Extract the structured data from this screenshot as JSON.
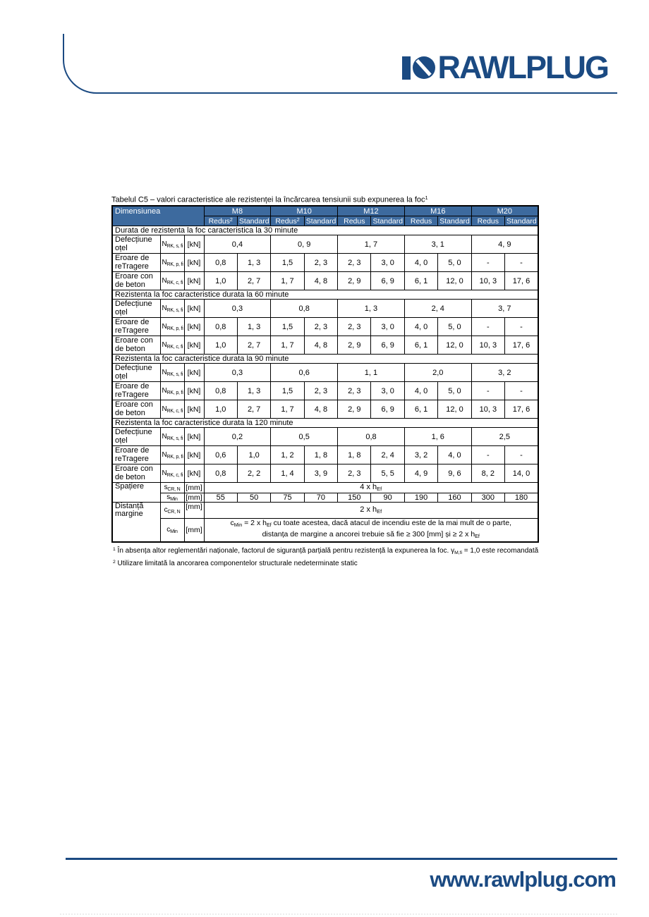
{
  "brand": {
    "logo_text": "RAWLPLUG",
    "website": "www.rawlplug.com",
    "color": "#1b4a82",
    "table_header_color": "#3d6a9e"
  },
  "table": {
    "title": "Tabelul C5 – valori caracteristice ale rezistenței la încărcarea tensiunii sub expunerea la foc^1^",
    "header": {
      "dimension": "Dimensiunea",
      "groups": [
        "M8",
        "M10",
        "M12",
        "M16",
        "M20"
      ],
      "subcols": [
        "Redus^2^",
        "Standard",
        "Redus^2^",
        "Standard",
        "Redus",
        "Standard",
        "Redus",
        "Standard",
        "Redus",
        "Standard"
      ]
    },
    "sections": [
      {
        "title": "Durata de rezistenta la foc caracteristica la 30 minute",
        "rows": [
          {
            "label": "Defecțiune oțel",
            "symbol": "N~RK, s, fi~",
            "unit": "[kN]",
            "span": 2,
            "values": [
              "0,4",
              "0, 9",
              "1, 7",
              "3, 1",
              "4, 9"
            ]
          },
          {
            "label": "Eroare de reTragere",
            "symbol": "N~RK, p, fi~",
            "unit": "[kN]",
            "span": 1,
            "values": [
              "0,8",
              "1, 3",
              "1,5",
              "2, 3",
              "2, 3",
              "3, 0",
              "4, 0",
              "5, 0",
              "-",
              "-"
            ]
          },
          {
            "label": "Eroare con de beton",
            "symbol": "N~RK, c, fi~",
            "unit": "[kN]",
            "span": 1,
            "values": [
              "1,0",
              "2, 7",
              "1, 7",
              "4, 8",
              "2, 9",
              "6, 9",
              "6, 1",
              "12, 0",
              "10, 3",
              "17, 6"
            ]
          }
        ]
      },
      {
        "title": "Rezistenta la foc caracteristice durata la 60 minute",
        "rows": [
          {
            "label": "Defecțiune oțel",
            "symbol": "N~RK, s, fi~",
            "unit": "[kN]",
            "span": 2,
            "values": [
              "0,3",
              "0,8",
              "1, 3",
              "2, 4",
              "3, 7"
            ]
          },
          {
            "label": "Eroare de reTragere",
            "symbol": "N~RK, p, fi~",
            "unit": "[kN]",
            "span": 1,
            "values": [
              "0,8",
              "1, 3",
              "1,5",
              "2, 3",
              "2, 3",
              "3, 0",
              "4, 0",
              "5, 0",
              "-",
              "-"
            ]
          },
          {
            "label": "Eroare con de beton",
            "symbol": "N~RK, c, fi~",
            "unit": "[kN]",
            "span": 1,
            "values": [
              "1,0",
              "2, 7",
              "1, 7",
              "4, 8",
              "2, 9",
              "6, 9",
              "6, 1",
              "12, 0",
              "10, 3",
              "17, 6"
            ]
          }
        ]
      },
      {
        "title": "Rezistenta la foc caracteristice durata la 90 minute",
        "rows": [
          {
            "label": "Defecțiune oțel",
            "symbol": "N~RK, s, fi~",
            "unit": "[kN]",
            "span": 2,
            "values": [
              "0,3",
              "0,6",
              "1, 1",
              "2,0",
              "3, 2"
            ]
          },
          {
            "label": "Eroare de reTragere",
            "symbol": "N~RK, p, fi~",
            "unit": "[kN]",
            "span": 1,
            "values": [
              "0,8",
              "1, 3",
              "1,5",
              "2, 3",
              "2, 3",
              "3, 0",
              "4, 0",
              "5, 0",
              "-",
              "-"
            ]
          },
          {
            "label": "Eroare con de beton",
            "symbol": "N~RK, c, fi~",
            "unit": "[kN]",
            "span": 1,
            "values": [
              "1,0",
              "2, 7",
              "1, 7",
              "4, 8",
              "2, 9",
              "6, 9",
              "6, 1",
              "12, 0",
              "10, 3",
              "17, 6"
            ]
          }
        ]
      },
      {
        "title": "Rezistenta la foc caracteristice durata la 120 minute",
        "rows": [
          {
            "label": "Defecțiune oțel",
            "symbol": "N~RK, s, fi~",
            "unit": "[kN]",
            "span": 2,
            "values": [
              "0,2",
              "0,5",
              "0,8",
              "1, 6",
              "2,5"
            ]
          },
          {
            "label": "Eroare de reTragere",
            "symbol": "N~RK, p, fi~",
            "unit": "[kN]",
            "span": 1,
            "values": [
              "0,6",
              "1,0",
              "1, 2",
              "1, 8",
              "1, 8",
              "2, 4",
              "3, 2",
              "4, 0",
              "-",
              "-"
            ]
          },
          {
            "label": "Eroare con de beton",
            "symbol": "N~RK, c, fi~",
            "unit": "[kN]",
            "span": 1,
            "values": [
              "0,8",
              "2, 2",
              "1, 4",
              "3, 9",
              "2, 3",
              "5, 5",
              "4, 9",
              "9, 6",
              "8, 2",
              "14, 0"
            ]
          }
        ]
      }
    ],
    "bottom": {
      "spacing_label": "Spațiere",
      "edge_label": "Distanță margine",
      "scr": {
        "symbol": "s~CR, N~",
        "unit": "[mm]",
        "value": "4 x h~Ef~"
      },
      "smin": {
        "symbol": "s~Min~",
        "unit": "[mm]",
        "values": [
          "55",
          "50",
          "75",
          "70",
          "150",
          "90",
          "190",
          "160",
          "300",
          "180"
        ]
      },
      "ccr": {
        "symbol": "c~CR, N~",
        "unit": "[mm]",
        "value": "2 x h~Ef~"
      },
      "cmin": {
        "symbol": "c~Min~",
        "unit": "[mm]",
        "lines": [
          "c~Min~ = 2 x h~Ef~ cu toate acestea, dacă atacul de incendiu este de la mai mult de o parte,",
          "distanța de margine a ancorei trebuie să fie ≥ 300 [mm] și ≥ 2 x h~Ef~"
        ]
      }
    },
    "footnotes": [
      "^1^ În absența altor reglementări naționale, factorul de siguranță parțială pentru rezistență la expunerea la foc. γ~M,fi~ = 1,0 este recomandată",
      "^2^ Utilizare limitată la ancorarea componentelor structurale nedeterminate static"
    ]
  }
}
